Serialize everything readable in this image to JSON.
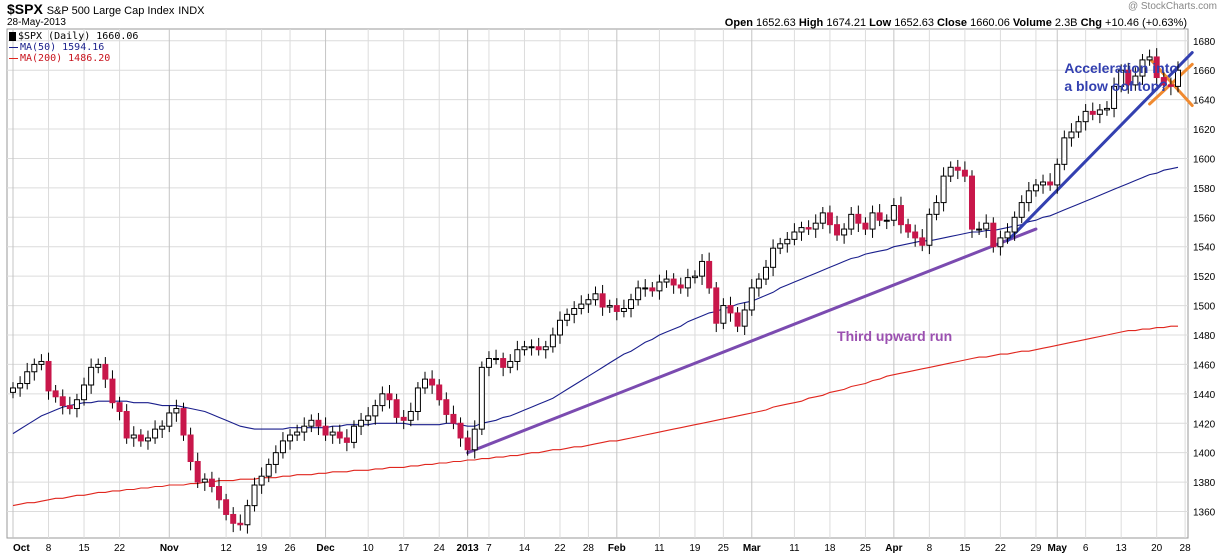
{
  "header": {
    "symbol": "$SPX",
    "name": "S&P 500 Large Cap Index",
    "exchange": "INDX",
    "date": "28-May-2013",
    "credit": "@ StockCharts.com",
    "open_label": "Open",
    "open": "1652.63",
    "high_label": "High",
    "high": "1674.21",
    "low_label": "Low",
    "low": "1652.63",
    "close_label": "Close",
    "close": "1660.06",
    "volume_label": "Volume",
    "volume": "2.3B",
    "chg_label": "Chg",
    "chg": "+10.46 (+0.63%)"
  },
  "legend": {
    "price": "$SPX (Daily) 1660.06",
    "ma50": "MA(50) 1594.16",
    "ma200": "MA(200) 1486.20"
  },
  "colors": {
    "up": "#ffffff",
    "down": "#c8174a",
    "ma50": "#1a1f8c",
    "ma200": "#e0261e",
    "trend_purple": "#7b4bb0",
    "trend_blue": "#3340b0",
    "x_orange": "#f08a30",
    "grid": "#dcdcdc"
  },
  "chart_data": {
    "type": "candlestick",
    "ylim": [
      1342,
      1688
    ],
    "yticks": [
      1360,
      1380,
      1400,
      1420,
      1440,
      1460,
      1480,
      1500,
      1520,
      1540,
      1560,
      1580,
      1600,
      1620,
      1640,
      1660,
      1680
    ],
    "xticks": [
      {
        "label": "Oct",
        "i": 0
      },
      {
        "label": "8",
        "i": 5
      },
      {
        "label": "15",
        "i": 10
      },
      {
        "label": "22",
        "i": 15
      },
      {
        "label": "Nov",
        "i": 22
      },
      {
        "label": "12",
        "i": 30
      },
      {
        "label": "19",
        "i": 35
      },
      {
        "label": "26",
        "i": 39
      },
      {
        "label": "Dec",
        "i": 44
      },
      {
        "label": "10",
        "i": 50
      },
      {
        "label": "17",
        "i": 55
      },
      {
        "label": "24",
        "i": 60
      },
      {
        "label": "2013",
        "i": 64
      },
      {
        "label": "7",
        "i": 67
      },
      {
        "label": "14",
        "i": 72
      },
      {
        "label": "22",
        "i": 77
      },
      {
        "label": "28",
        "i": 81
      },
      {
        "label": "Feb",
        "i": 85
      },
      {
        "label": "11",
        "i": 91
      },
      {
        "label": "19",
        "i": 96
      },
      {
        "label": "25",
        "i": 100
      },
      {
        "label": "Mar",
        "i": 104
      },
      {
        "label": "11",
        "i": 110
      },
      {
        "label": "18",
        "i": 115
      },
      {
        "label": "25",
        "i": 120
      },
      {
        "label": "Apr",
        "i": 124
      },
      {
        "label": "8",
        "i": 129
      },
      {
        "label": "15",
        "i": 134
      },
      {
        "label": "22",
        "i": 139
      },
      {
        "label": "29",
        "i": 144
      },
      {
        "label": "May",
        "i": 147
      },
      {
        "label": "6",
        "i": 151
      },
      {
        "label": "13",
        "i": 156
      },
      {
        "label": "20",
        "i": 161
      },
      {
        "label": "28",
        "i": 165
      }
    ],
    "close": [
      1444,
      1447,
      1455,
      1460,
      1462,
      1442,
      1438,
      1432,
      1430,
      1436,
      1446,
      1458,
      1460,
      1450,
      1434,
      1428,
      1410,
      1412,
      1408,
      1410,
      1416,
      1418,
      1427,
      1430,
      1412,
      1394,
      1380,
      1382,
      1377,
      1368,
      1358,
      1352,
      1351,
      1364,
      1378,
      1384,
      1392,
      1400,
      1408,
      1412,
      1414,
      1418,
      1422,
      1418,
      1412,
      1414,
      1410,
      1407,
      1418,
      1422,
      1425,
      1432,
      1440,
      1436,
      1424,
      1422,
      1428,
      1444,
      1450,
      1446,
      1436,
      1426,
      1420,
      1410,
      1402,
      1416,
      1458,
      1464,
      1464,
      1458,
      1462,
      1470,
      1472,
      1472,
      1470,
      1472,
      1480,
      1490,
      1494,
      1498,
      1501,
      1504,
      1508,
      1499,
      1500,
      1496,
      1498,
      1504,
      1512,
      1512,
      1510,
      1516,
      1518,
      1514,
      1512,
      1519,
      1520,
      1530,
      1512,
      1488,
      1500,
      1495,
      1486,
      1497,
      1512,
      1518,
      1526,
      1539,
      1542,
      1545,
      1550,
      1553,
      1552,
      1556,
      1563,
      1555,
      1548,
      1552,
      1562,
      1556,
      1552,
      1563,
      1558,
      1558,
      1568,
      1555,
      1550,
      1546,
      1541,
      1562,
      1570,
      1588,
      1594,
      1592,
      1588,
      1552,
      1552,
      1556,
      1540,
      1546,
      1550,
      1560,
      1570,
      1578,
      1582,
      1584,
      1582,
      1596,
      1614,
      1618,
      1625,
      1632,
      1630,
      1633,
      1634,
      1649,
      1660,
      1650,
      1656,
      1667,
      1669,
      1655,
      1650,
      1649,
      1660
    ],
    "ma50": [
      1413,
      1416,
      1419,
      1422,
      1425,
      1427,
      1429,
      1431,
      1432,
      1433,
      1434,
      1434,
      1435,
      1435,
      1435,
      1435,
      1435,
      1434,
      1434,
      1434,
      1433,
      1432,
      1432,
      1432,
      1431,
      1430,
      1429,
      1428,
      1426,
      1424,
      1422,
      1420,
      1418,
      1417,
      1416,
      1416,
      1416,
      1416,
      1416,
      1417,
      1417,
      1417,
      1417,
      1417,
      1417,
      1418,
      1418,
      1419,
      1419,
      1419,
      1419,
      1420,
      1420,
      1420,
      1420,
      1420,
      1419,
      1419,
      1419,
      1419,
      1419,
      1420,
      1420,
      1419,
      1418,
      1418,
      1420,
      1421,
      1422,
      1424,
      1425,
      1427,
      1429,
      1431,
      1433,
      1435,
      1437,
      1440,
      1443,
      1446,
      1449,
      1452,
      1455,
      1458,
      1461,
      1464,
      1467,
      1469,
      1472,
      1475,
      1477,
      1480,
      1482,
      1484,
      1486,
      1489,
      1491,
      1493,
      1495,
      1496,
      1498,
      1499,
      1501,
      1502,
      1503,
      1505,
      1507,
      1509,
      1512,
      1514,
      1516,
      1518,
      1520,
      1522,
      1524,
      1526,
      1528,
      1530,
      1532,
      1533,
      1535,
      1536,
      1537,
      1538,
      1540,
      1541,
      1542,
      1543,
      1544,
      1544,
      1545,
      1546,
      1547,
      1548,
      1549,
      1550,
      1550,
      1551,
      1551,
      1552,
      1553,
      1554,
      1555,
      1557,
      1558,
      1560,
      1561,
      1563,
      1565,
      1567,
      1569,
      1571,
      1573,
      1575,
      1577,
      1579,
      1581,
      1583,
      1585,
      1587,
      1589,
      1590,
      1592,
      1593,
      1594
    ],
    "ma200": [
      1364,
      1365,
      1366,
      1366,
      1367,
      1368,
      1369,
      1369,
      1370,
      1371,
      1371,
      1372,
      1373,
      1373,
      1374,
      1374,
      1375,
      1375,
      1376,
      1376,
      1377,
      1377,
      1378,
      1378,
      1378,
      1379,
      1379,
      1380,
      1380,
      1381,
      1381,
      1381,
      1382,
      1382,
      1382,
      1383,
      1383,
      1383,
      1384,
      1384,
      1385,
      1385,
      1385,
      1386,
      1386,
      1387,
      1387,
      1387,
      1388,
      1388,
      1388,
      1389,
      1389,
      1390,
      1390,
      1390,
      1391,
      1391,
      1392,
      1392,
      1393,
      1393,
      1394,
      1394,
      1395,
      1395,
      1396,
      1396,
      1397,
      1397,
      1398,
      1398,
      1399,
      1400,
      1400,
      1401,
      1402,
      1402,
      1403,
      1404,
      1404,
      1405,
      1406,
      1407,
      1408,
      1408,
      1409,
      1410,
      1411,
      1412,
      1413,
      1414,
      1415,
      1416,
      1417,
      1418,
      1419,
      1420,
      1421,
      1422,
      1423,
      1424,
      1425,
      1426,
      1427,
      1428,
      1429,
      1431,
      1432,
      1433,
      1434,
      1435,
      1437,
      1438,
      1439,
      1441,
      1442,
      1443,
      1445,
      1446,
      1447,
      1449,
      1450,
      1452,
      1453,
      1454,
      1455,
      1456,
      1457,
      1458,
      1459,
      1460,
      1461,
      1462,
      1463,
      1464,
      1465,
      1465,
      1466,
      1467,
      1467,
      1468,
      1469,
      1469,
      1470,
      1471,
      1472,
      1473,
      1474,
      1475,
      1476,
      1477,
      1478,
      1479,
      1480,
      1481,
      1482,
      1483,
      1483,
      1484,
      1484,
      1485,
      1485,
      1486,
      1486
    ],
    "annotations": [
      {
        "text": "Third upward run",
        "color": "#9b50b0",
        "at": [
          116,
          1476
        ]
      },
      {
        "text": "Acceleration into",
        "color": "#3340b0",
        "at": [
          148,
          1658
        ]
      },
      {
        "text": "a blow oof top?",
        "color": "#3340b0",
        "at": [
          148,
          1646
        ]
      }
    ],
    "trendlines": [
      {
        "name": "purple-trendline",
        "color": "#7b4bb0",
        "from": [
          64,
          1400
        ],
        "to": [
          144,
          1552
        ]
      },
      {
        "name": "blue-trendline",
        "color": "#3340b0",
        "from": [
          140,
          1544
        ],
        "to": [
          166,
          1672
        ]
      },
      {
        "name": "orange-x-line-1",
        "color": "#f08a30",
        "from": [
          160,
          1668
        ],
        "to": [
          166,
          1636
        ]
      },
      {
        "name": "orange-x-line-2",
        "color": "#f08a30",
        "from": [
          160,
          1637
        ],
        "to": [
          166,
          1664
        ]
      }
    ]
  }
}
